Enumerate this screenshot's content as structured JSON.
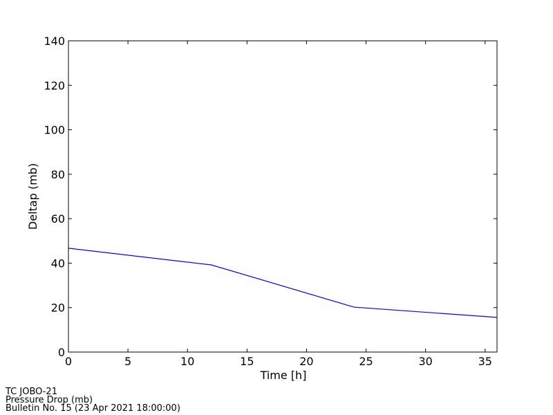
{
  "chart_data": {
    "type": "line",
    "xlabel": "Time [h]",
    "ylabel": "Deltap (mb)",
    "x": [
      0,
      12,
      24,
      36
    ],
    "series": [
      {
        "name": "Pressure Drop",
        "color": "#0000ff",
        "values": [
          46.7,
          39.2,
          20.2,
          15.6
        ]
      }
    ],
    "xlim": [
      0,
      36
    ],
    "xticks": [
      0,
      5,
      10,
      15,
      20,
      25,
      30,
      35
    ],
    "ylim": [
      0,
      140
    ],
    "yticks": [
      0,
      20,
      40,
      60,
      80,
      100,
      120,
      140
    ],
    "annotations": [
      "TC JOBO-21",
      "Pressure Drop (mb)",
      "Bulletin No. 15 (23 Apr 2021  18:00:00)"
    ]
  }
}
